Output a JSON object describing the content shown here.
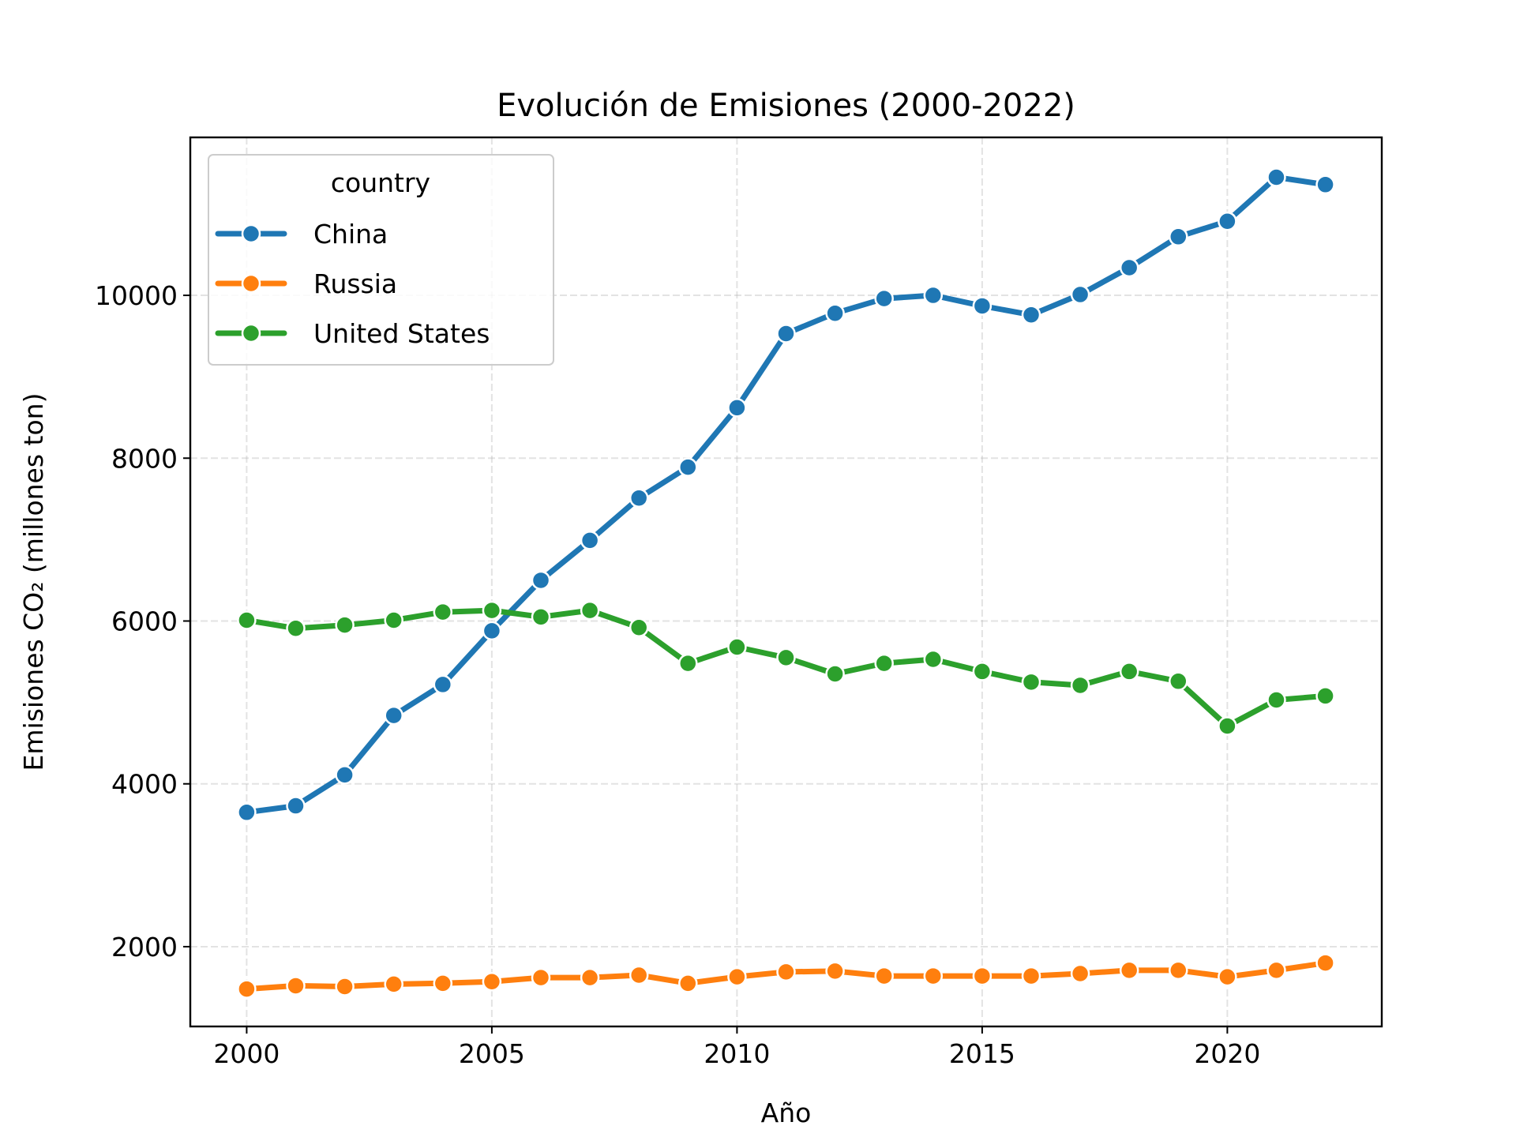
{
  "chart_data": {
    "type": "line",
    "title": "Evolución de Emisiones (2000-2022)",
    "xlabel": "Año",
    "ylabel": "Emisiones CO₂ (millones ton)",
    "xlim": [
      1998.85,
      2023.15
    ],
    "ylim": [
      1020,
      11940
    ],
    "xticks": [
      2000,
      2005,
      2010,
      2015,
      2020
    ],
    "yticks": [
      2000,
      4000,
      6000,
      8000,
      10000
    ],
    "grid": true,
    "legend": {
      "title": "country",
      "placement": "upper-left",
      "entries": [
        "China",
        "Russia",
        "United States"
      ]
    },
    "x": [
      2000,
      2001,
      2002,
      2003,
      2004,
      2005,
      2006,
      2007,
      2008,
      2009,
      2010,
      2011,
      2012,
      2013,
      2014,
      2015,
      2016,
      2017,
      2018,
      2019,
      2020,
      2021,
      2022
    ],
    "series": [
      {
        "name": "China",
        "color": "#1f77b4",
        "values": [
          3650,
          3730,
          4110,
          4840,
          5220,
          5880,
          6500,
          6990,
          7510,
          7890,
          8620,
          9530,
          9780,
          9960,
          10000,
          9870,
          9760,
          10010,
          10340,
          10720,
          10910,
          11450,
          11360
        ]
      },
      {
        "name": "Russia",
        "color": "#ff7f0e",
        "values": [
          1480,
          1520,
          1510,
          1540,
          1550,
          1570,
          1620,
          1620,
          1650,
          1550,
          1630,
          1690,
          1700,
          1640,
          1640,
          1640,
          1640,
          1670,
          1710,
          1710,
          1630,
          1710,
          1800
        ]
      },
      {
        "name": "United States",
        "color": "#2ca02c",
        "values": [
          6010,
          5910,
          5950,
          6010,
          6110,
          6130,
          6050,
          6130,
          5920,
          5480,
          5680,
          5550,
          5350,
          5480,
          5530,
          5380,
          5250,
          5210,
          5380,
          5260,
          4710,
          5030,
          5080
        ]
      }
    ]
  }
}
